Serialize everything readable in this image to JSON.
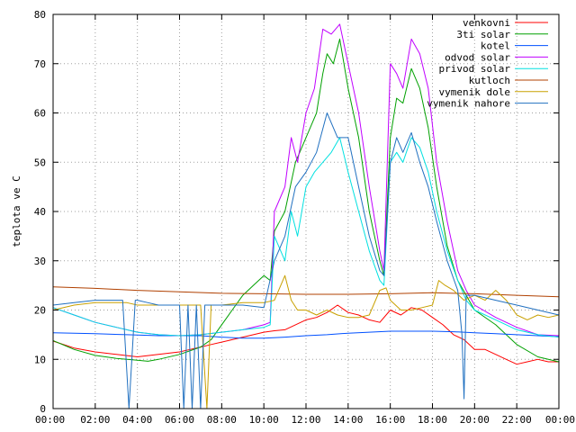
{
  "chart_data": {
    "type": "line",
    "title": "",
    "xlabel": "",
    "ylabel": "teplota ve C",
    "ylim": [
      0,
      80
    ],
    "yticks": [
      0,
      10,
      20,
      30,
      40,
      50,
      60,
      70,
      80
    ],
    "xlim": [
      0,
      24
    ],
    "xtick_values": [
      0,
      2,
      4,
      6,
      8,
      10,
      12,
      14,
      16,
      18,
      20,
      22,
      24
    ],
    "xtick_labels": [
      "00:00",
      "02:00",
      "04:00",
      "06:00",
      "08:00",
      "10:00",
      "12:00",
      "14:00",
      "16:00",
      "18:00",
      "20:00",
      "22:00",
      "00:00"
    ],
    "grid": true,
    "legend_position": "top-right",
    "series": [
      {
        "name": "venkovni",
        "color": "#ff0000",
        "points": [
          [
            0,
            13.7
          ],
          [
            1,
            12.3
          ],
          [
            2,
            11.5
          ],
          [
            3,
            11.0
          ],
          [
            4,
            10.5
          ],
          [
            5,
            11.0
          ],
          [
            6,
            11.5
          ],
          [
            6.5,
            12.0
          ],
          [
            7,
            12.5
          ],
          [
            7.5,
            13.0
          ],
          [
            8,
            13.5
          ],
          [
            8.5,
            14.0
          ],
          [
            9,
            14.5
          ],
          [
            9.5,
            15.0
          ],
          [
            10,
            15.5
          ],
          [
            10.5,
            15.8
          ],
          [
            11,
            16.0
          ],
          [
            11.5,
            17.0
          ],
          [
            12,
            18.0
          ],
          [
            12.5,
            18.5
          ],
          [
            13,
            19.5
          ],
          [
            13.5,
            21.0
          ],
          [
            14,
            19.5
          ],
          [
            14.5,
            19.0
          ],
          [
            15,
            18.0
          ],
          [
            15.5,
            17.5
          ],
          [
            16,
            20.0
          ],
          [
            16.5,
            19.0
          ],
          [
            17,
            20.5
          ],
          [
            17.5,
            20.0
          ],
          [
            18,
            18.5
          ],
          [
            18.5,
            17.0
          ],
          [
            19,
            15.0
          ],
          [
            19.5,
            14.0
          ],
          [
            20,
            12.0
          ],
          [
            20.5,
            12.0
          ],
          [
            21,
            11.0
          ],
          [
            21.5,
            10.0
          ],
          [
            22,
            9.0
          ],
          [
            22.5,
            9.5
          ],
          [
            23,
            10.0
          ],
          [
            23.5,
            9.5
          ],
          [
            24,
            9.5
          ]
        ]
      },
      {
        "name": "3ti solar",
        "color": "#00a000",
        "points": [
          [
            0,
            13.8
          ],
          [
            1,
            12.0
          ],
          [
            2,
            10.8
          ],
          [
            3,
            10.2
          ],
          [
            4,
            9.8
          ],
          [
            4.5,
            9.6
          ],
          [
            5,
            10.0
          ],
          [
            6,
            11.0
          ],
          [
            7,
            12.5
          ],
          [
            7.5,
            14.0
          ],
          [
            8,
            17.0
          ],
          [
            8.5,
            20.0
          ],
          [
            9,
            23.0
          ],
          [
            9.5,
            25.0
          ],
          [
            10,
            27.0
          ],
          [
            10.3,
            26.0
          ],
          [
            10.5,
            36.0
          ],
          [
            11,
            40.0
          ],
          [
            11.2,
            44.0
          ],
          [
            11.5,
            50.0
          ],
          [
            12,
            55.0
          ],
          [
            12.5,
            60.0
          ],
          [
            12.8,
            68.0
          ],
          [
            13,
            72.0
          ],
          [
            13.3,
            70.0
          ],
          [
            13.6,
            75.0
          ],
          [
            14,
            65.0
          ],
          [
            14.5,
            55.0
          ],
          [
            15,
            40.0
          ],
          [
            15.5,
            30.0
          ],
          [
            15.7,
            27.0
          ],
          [
            16,
            55.0
          ],
          [
            16.3,
            63.0
          ],
          [
            16.6,
            62.0
          ],
          [
            17,
            69.0
          ],
          [
            17.4,
            65.0
          ],
          [
            17.8,
            57.0
          ],
          [
            18.2,
            45.0
          ],
          [
            18.7,
            33.0
          ],
          [
            19.2,
            26.0
          ],
          [
            19.6,
            23.0
          ],
          [
            20,
            20.0
          ],
          [
            21,
            17.0
          ],
          [
            22,
            13.0
          ],
          [
            23,
            10.5
          ],
          [
            24,
            9.5
          ]
        ]
      },
      {
        "name": "kotel",
        "color": "#0050ff",
        "points": [
          [
            0,
            15.4
          ],
          [
            2,
            15.2
          ],
          [
            3.5,
            15.0
          ],
          [
            5,
            14.8
          ],
          [
            6,
            14.8
          ],
          [
            7,
            14.8
          ],
          [
            8,
            14.5
          ],
          [
            9,
            14.3
          ],
          [
            10,
            14.3
          ],
          [
            11,
            14.5
          ],
          [
            12,
            14.8
          ],
          [
            13,
            15.0
          ],
          [
            14,
            15.3
          ],
          [
            15,
            15.5
          ],
          [
            16,
            15.7
          ],
          [
            17,
            15.7
          ],
          [
            18,
            15.7
          ],
          [
            19,
            15.6
          ],
          [
            20,
            15.4
          ],
          [
            21,
            15.2
          ],
          [
            22,
            15.0
          ],
          [
            23,
            14.8
          ],
          [
            24,
            14.6
          ]
        ]
      },
      {
        "name": "odvod solar",
        "color": "#c000ff",
        "points": [
          [
            0,
            20.5
          ],
          [
            1,
            19.0
          ],
          [
            2,
            17.5
          ],
          [
            3,
            16.5
          ],
          [
            4,
            15.5
          ],
          [
            5,
            15.0
          ],
          [
            6,
            14.8
          ],
          [
            7,
            15.0
          ],
          [
            8,
            15.5
          ],
          [
            9,
            16.0
          ],
          [
            10,
            17.0
          ],
          [
            10.3,
            17.5
          ],
          [
            10.5,
            40.0
          ],
          [
            11,
            45.0
          ],
          [
            11.3,
            55.0
          ],
          [
            11.6,
            50.0
          ],
          [
            12,
            60.0
          ],
          [
            12.4,
            65.0
          ],
          [
            12.8,
            77.0
          ],
          [
            13.2,
            76.0
          ],
          [
            13.6,
            78.0
          ],
          [
            14,
            70.0
          ],
          [
            14.5,
            60.0
          ],
          [
            15,
            45.0
          ],
          [
            15.5,
            32.0
          ],
          [
            15.7,
            28.0
          ],
          [
            16,
            70.0
          ],
          [
            16.3,
            68.0
          ],
          [
            16.6,
            65.0
          ],
          [
            17,
            75.0
          ],
          [
            17.4,
            72.0
          ],
          [
            17.8,
            65.0
          ],
          [
            18.2,
            50.0
          ],
          [
            18.7,
            38.0
          ],
          [
            19.2,
            28.0
          ],
          [
            19.6,
            24.0
          ],
          [
            20,
            21.0
          ],
          [
            21,
            18.5
          ],
          [
            22,
            16.5
          ],
          [
            23,
            15.0
          ],
          [
            24,
            14.8
          ]
        ]
      },
      {
        "name": "privod solar",
        "color": "#00e0e0",
        "points": [
          [
            0,
            20.5
          ],
          [
            1,
            19.0
          ],
          [
            2,
            17.5
          ],
          [
            3,
            16.5
          ],
          [
            4,
            15.5
          ],
          [
            5,
            15.0
          ],
          [
            6,
            14.8
          ],
          [
            7,
            15.0
          ],
          [
            8,
            15.5
          ],
          [
            9,
            16.0
          ],
          [
            10,
            16.5
          ],
          [
            10.3,
            17.0
          ],
          [
            10.5,
            35.0
          ],
          [
            11,
            30.0
          ],
          [
            11.3,
            40.0
          ],
          [
            11.6,
            35.0
          ],
          [
            12,
            45.0
          ],
          [
            12.4,
            48.0
          ],
          [
            12.8,
            50.0
          ],
          [
            13.2,
            52.0
          ],
          [
            13.6,
            55.0
          ],
          [
            14,
            48.0
          ],
          [
            14.5,
            40.0
          ],
          [
            15,
            32.0
          ],
          [
            15.5,
            26.0
          ],
          [
            15.7,
            25.0
          ],
          [
            16,
            50.0
          ],
          [
            16.3,
            52.0
          ],
          [
            16.6,
            50.0
          ],
          [
            17,
            55.0
          ],
          [
            17.4,
            53.0
          ],
          [
            17.8,
            48.0
          ],
          [
            18.2,
            40.0
          ],
          [
            18.7,
            32.0
          ],
          [
            19.2,
            26.0
          ],
          [
            19.6,
            22.0
          ],
          [
            20,
            20.0
          ],
          [
            21,
            18.0
          ],
          [
            22,
            16.0
          ],
          [
            23,
            15.0
          ],
          [
            24,
            14.5
          ]
        ]
      },
      {
        "name": "kutloch",
        "color": "#b04000",
        "points": [
          [
            0,
            24.7
          ],
          [
            2,
            24.4
          ],
          [
            4,
            24.0
          ],
          [
            6,
            23.7
          ],
          [
            8,
            23.4
          ],
          [
            10,
            23.3
          ],
          [
            12,
            23.2
          ],
          [
            14,
            23.2
          ],
          [
            16,
            23.3
          ],
          [
            18,
            23.5
          ],
          [
            20,
            23.3
          ],
          [
            22,
            23.0
          ],
          [
            24,
            22.7
          ]
        ]
      },
      {
        "name": "vymenik dole",
        "color": "#c8a000",
        "points": [
          [
            0,
            20.0
          ],
          [
            1,
            21.0
          ],
          [
            2,
            21.5
          ],
          [
            3,
            21.5
          ],
          [
            3.5,
            21.5
          ],
          [
            4,
            21.0
          ],
          [
            4.5,
            21.0
          ],
          [
            5,
            21.0
          ],
          [
            5.5,
            21.0
          ],
          [
            6,
            21.0
          ],
          [
            7,
            21.0
          ],
          [
            7.3,
            0.0
          ],
          [
            7.5,
            21.0
          ],
          [
            8,
            21.0
          ],
          [
            9,
            21.5
          ],
          [
            10,
            21.5
          ],
          [
            10.5,
            22.0
          ],
          [
            11,
            27.0
          ],
          [
            11.3,
            22.0
          ],
          [
            11.6,
            20.0
          ],
          [
            12,
            20.0
          ],
          [
            12.5,
            19.0
          ],
          [
            13,
            20.0
          ],
          [
            13.5,
            19.0
          ],
          [
            14,
            18.5
          ],
          [
            14.5,
            18.5
          ],
          [
            15,
            19.0
          ],
          [
            15.5,
            24.0
          ],
          [
            15.8,
            24.5
          ],
          [
            16,
            22.0
          ],
          [
            16.5,
            20.0
          ],
          [
            17,
            20.0
          ],
          [
            17.5,
            20.5
          ],
          [
            18,
            21.0
          ],
          [
            18.3,
            26.0
          ],
          [
            18.6,
            25.0
          ],
          [
            19,
            24.0
          ],
          [
            19.5,
            22.0
          ],
          [
            20,
            23.0
          ],
          [
            20.5,
            22.0
          ],
          [
            21,
            24.0
          ],
          [
            21.5,
            22.0
          ],
          [
            22,
            19.0
          ],
          [
            22.5,
            18.0
          ],
          [
            23,
            19.0
          ],
          [
            23.5,
            18.5
          ],
          [
            24,
            19.0
          ]
        ]
      },
      {
        "name": "vymenik nahore",
        "color": "#2070c0",
        "points": [
          [
            0,
            21.0
          ],
          [
            1,
            21.5
          ],
          [
            2,
            22.0
          ],
          [
            3,
            22.0
          ],
          [
            3.3,
            22.0
          ],
          [
            3.6,
            0.0
          ],
          [
            3.9,
            22.0
          ],
          [
            4,
            22.0
          ],
          [
            4.5,
            21.5
          ],
          [
            5,
            21.0
          ],
          [
            5.5,
            21.0
          ],
          [
            6,
            21.0
          ],
          [
            6.2,
            0.0
          ],
          [
            6.4,
            21.0
          ],
          [
            6.6,
            0.0
          ],
          [
            6.8,
            21.0
          ],
          [
            7,
            0.0
          ],
          [
            7.2,
            21.0
          ],
          [
            8,
            21.0
          ],
          [
            9,
            21.0
          ],
          [
            10,
            20.5
          ],
          [
            10.5,
            30.0
          ],
          [
            11,
            35.0
          ],
          [
            11.5,
            45.0
          ],
          [
            12,
            48.0
          ],
          [
            12.5,
            52.0
          ],
          [
            13,
            60.0
          ],
          [
            13.5,
            55.0
          ],
          [
            14,
            55.0
          ],
          [
            14.5,
            45.0
          ],
          [
            15,
            35.0
          ],
          [
            15.5,
            28.0
          ],
          [
            15.7,
            27.0
          ],
          [
            16,
            50.0
          ],
          [
            16.3,
            55.0
          ],
          [
            16.6,
            52.0
          ],
          [
            17,
            56.0
          ],
          [
            17.4,
            50.0
          ],
          [
            17.8,
            45.0
          ],
          [
            18.2,
            38.0
          ],
          [
            18.7,
            30.0
          ],
          [
            19.2,
            24.0
          ],
          [
            19.4,
            15.0
          ],
          [
            19.5,
            2.0
          ],
          [
            19.6,
            23.0
          ],
          [
            20,
            23.0
          ],
          [
            21,
            22.0
          ],
          [
            22,
            21.0
          ],
          [
            23,
            20.0
          ],
          [
            24,
            19.0
          ]
        ]
      }
    ]
  }
}
